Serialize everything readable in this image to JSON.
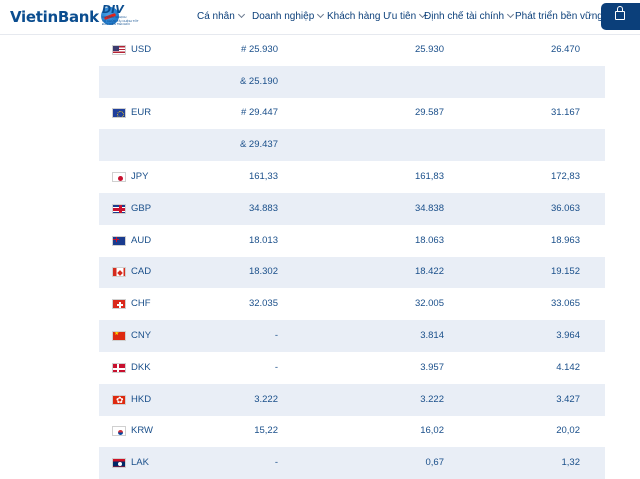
{
  "header": {
    "logo_text": "VietinBank",
    "badge_title": "DIV",
    "badge_sub_1": "CƯƠNG NGHỊCH",
    "badge_sub_2": "TỐ CHỨC TÀI CHÍNH TỐT",
    "badge_sub_3": "ĐẦU TIÊN TIÊN ĐỔI",
    "nav": [
      {
        "label": "Cá nhân"
      },
      {
        "label": "Doanh nghiệp"
      },
      {
        "label": "Khách hàng Ưu tiên"
      },
      {
        "label": "Định chế tài chính"
      },
      {
        "label": "Phát triển bền vững"
      }
    ]
  },
  "rates": [
    {
      "code": "USD",
      "flag": "us-flag",
      "c1": "# 25.930",
      "c2": "25.930",
      "c3": "26.470"
    },
    {
      "code": "",
      "flag": "",
      "c1": "& 25.190",
      "c2": "",
      "c3": ""
    },
    {
      "code": "EUR",
      "flag": "eu-flag",
      "c1": "# 29.447",
      "c2": "29.587",
      "c3": "31.167"
    },
    {
      "code": "",
      "flag": "",
      "c1": "& 29.437",
      "c2": "",
      "c3": ""
    },
    {
      "code": "JPY",
      "flag": "jp-flag",
      "c1": "161,33",
      "c2": "161,83",
      "c3": "172,83"
    },
    {
      "code": "GBP",
      "flag": "gb-flag",
      "c1": "34.883",
      "c2": "34.838",
      "c3": "36.063"
    },
    {
      "code": "AUD",
      "flag": "au-flag",
      "c1": "18.013",
      "c2": "18.063",
      "c3": "18.963"
    },
    {
      "code": "CAD",
      "flag": "ca-flag",
      "c1": "18.302",
      "c2": "18.422",
      "c3": "19.152"
    },
    {
      "code": "CHF",
      "flag": "ch-flag",
      "c1": "32.035",
      "c2": "32.005",
      "c3": "33.065"
    },
    {
      "code": "CNY",
      "flag": "cn-flag",
      "c1": "-",
      "c2": "3.814",
      "c3": "3.964"
    },
    {
      "code": "DKK",
      "flag": "dk-flag",
      "c1": "-",
      "c2": "3.957",
      "c3": "4.142"
    },
    {
      "code": "HKD",
      "flag": "hk-flag",
      "c1": "3.222",
      "c2": "3.222",
      "c3": "3.427"
    },
    {
      "code": "KRW",
      "flag": "kr-flag",
      "c1": "15,22",
      "c2": "16,02",
      "c3": "20,02"
    },
    {
      "code": "LAK",
      "flag": "la-flag",
      "c1": "-",
      "c2": "0,67",
      "c3": "1,32"
    }
  ],
  "colors": {
    "brand": "#0b3f7a",
    "row_alt": "#e9eef6",
    "text": "#1a4f8a"
  }
}
